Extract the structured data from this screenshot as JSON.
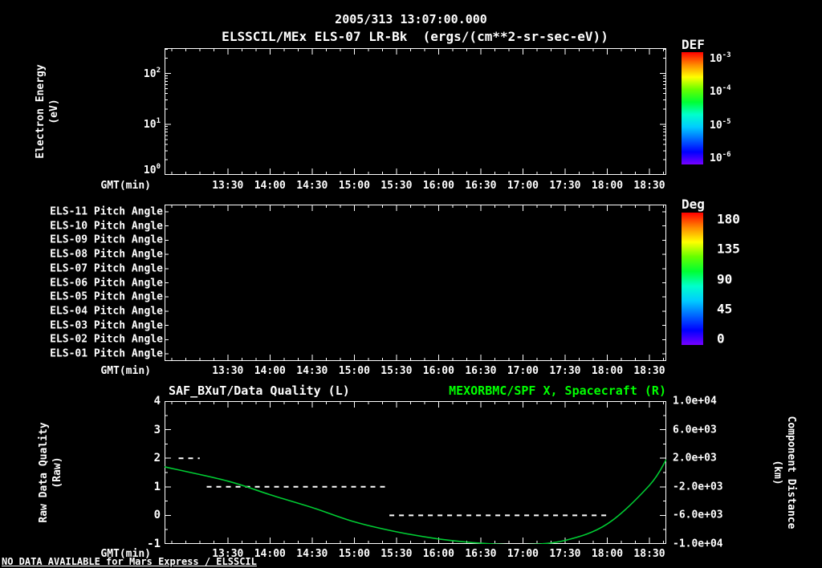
{
  "header": {
    "title": "2005/313 13:07:00.000",
    "subtitle": "ELSSCIL/MEx ELS-07 LR-Bk  (ergs/(cm**2-sr-sec-eV))"
  },
  "time_axis": {
    "label": "GMT(min)",
    "tick_labels": [
      "13:30",
      "14:00",
      "14:30",
      "15:00",
      "15:30",
      "16:00",
      "16:30",
      "17:00",
      "17:30",
      "18:00",
      "18:30"
    ],
    "tick_minutes": [
      810,
      840,
      870,
      900,
      930,
      960,
      990,
      1020,
      1050,
      1080,
      1110
    ],
    "start_min": 765,
    "end_min": 1122
  },
  "panel_energy": {
    "ylabel": [
      "Electron Energy",
      "(eV)"
    ],
    "yticks": [
      {
        "base": "10",
        "exp": "2",
        "log": 2
      },
      {
        "base": "10",
        "exp": "1",
        "log": 1
      },
      {
        "base": "10",
        "exp": "0",
        "log": 0
      }
    ],
    "log_decades_shown": 2.5,
    "colorbar": {
      "title": "DEF",
      "ticks": [
        {
          "base": "10",
          "exp": "-3"
        },
        {
          "base": "10",
          "exp": "-4"
        },
        {
          "base": "10",
          "exp": "-5"
        },
        {
          "base": "10",
          "exp": "-6"
        }
      ]
    }
  },
  "panel_pitch": {
    "row_labels": [
      "ELS-11 Pitch Angle",
      "ELS-10 Pitch Angle",
      "ELS-09 Pitch Angle",
      "ELS-08 Pitch Angle",
      "ELS-07 Pitch Angle",
      "ELS-06 Pitch Angle",
      "ELS-05 Pitch Angle",
      "ELS-04 Pitch Angle",
      "ELS-03 Pitch Angle",
      "ELS-02 Pitch Angle",
      "ELS-01 Pitch Angle"
    ],
    "colorbar": {
      "title": "Deg",
      "ticks": [
        "180",
        "135",
        "90",
        "45",
        "0"
      ]
    }
  },
  "panel_quality": {
    "title_left": "SAF_BXuT/Data Quality (L)",
    "title_right": "MEXORBMC/SPF X, Spacecraft (R)",
    "ylabel_left": [
      "Raw Data Quality",
      "(Raw)"
    ],
    "ylabel_right": [
      "Component Distance",
      "(km)"
    ],
    "left_ticks": [
      "4",
      "3",
      "2",
      "1",
      "0",
      "-1"
    ],
    "right_ticks": [
      "1.0e+04",
      "6.0e+03",
      "2.0e+03",
      "-2.0e+03",
      "-6.0e+03",
      "-1.0e+04"
    ]
  },
  "footer": {
    "no_data": "NO DATA AVAILABLE for Mars Express / ELSSCIL"
  },
  "colors": {
    "background": "#000000",
    "foreground": "#ffffff",
    "accent_green": "#00ff00",
    "curve_green": "#00cc33",
    "rainbow": [
      "#ff0000",
      "#ff8800",
      "#ffff00",
      "#66ff00",
      "#00ff33",
      "#00ffcc",
      "#00ccff",
      "#0066ff",
      "#0000ff",
      "#7700ff"
    ]
  },
  "chart_data": [
    {
      "type": "heatmap",
      "panel": "electron-energy-spectrogram",
      "title": "ELSSCIL/MEx ELS-07 LR-Bk (ergs/(cm**2-sr-sec-eV))",
      "xlabel": "GMT(min)",
      "x_ticks": [
        "13:30",
        "14:00",
        "14:30",
        "15:00",
        "15:30",
        "16:00",
        "16:30",
        "17:00",
        "17:30",
        "18:00",
        "18:30"
      ],
      "ylabel": "Electron Energy (eV)",
      "y_scale": "log",
      "y_tick_labels": [
        "10^0",
        "10^1",
        "10^2"
      ],
      "colorbar_title": "DEF",
      "colorbar_tick_labels": [
        "10^-3",
        "10^-4",
        "10^-5",
        "10^-6"
      ],
      "values": [],
      "empty": true
    },
    {
      "type": "heatmap",
      "panel": "pitch-angle",
      "xlabel": "GMT(min)",
      "x_ticks": [
        "13:30",
        "14:00",
        "14:30",
        "15:00",
        "15:30",
        "16:00",
        "16:30",
        "17:00",
        "17:30",
        "18:00",
        "18:30"
      ],
      "rows": [
        "ELS-11 Pitch Angle",
        "ELS-10 Pitch Angle",
        "ELS-09 Pitch Angle",
        "ELS-08 Pitch Angle",
        "ELS-07 Pitch Angle",
        "ELS-06 Pitch Angle",
        "ELS-05 Pitch Angle",
        "ELS-04 Pitch Angle",
        "ELS-03 Pitch Angle",
        "ELS-02 Pitch Angle",
        "ELS-01 Pitch Angle"
      ],
      "colorbar_title": "Deg",
      "colorbar_tick_labels": [
        "180",
        "135",
        "90",
        "45",
        "0"
      ],
      "values": [],
      "empty": true
    },
    {
      "type": "line",
      "panel": "quality-and-distance",
      "title_left": "SAF_BXuT/Data Quality (L)",
      "title_right": "MEXORBMC/SPF X, Spacecraft (R)",
      "xlabel": "GMT(min)",
      "x_ticks": [
        "13:30",
        "14:00",
        "14:30",
        "15:00",
        "15:30",
        "16:00",
        "16:30",
        "17:00",
        "17:30",
        "18:00",
        "18:30"
      ],
      "x_range_minutes": [
        765,
        1122
      ],
      "ylabel_left": "Raw Data Quality (Raw)",
      "ylim_left": [
        -1,
        4
      ],
      "ylabel_right": "Component Distance (km)",
      "ylim_right": [
        -10000,
        10000
      ],
      "series": [
        {
          "name": "Raw Data Quality",
          "axis": "left",
          "style": "dashed",
          "color": "#ffffff",
          "segments": [
            {
              "value": 2,
              "start_min": 775,
              "end_min": 790
            },
            {
              "value": 1,
              "start_min": 795,
              "end_min": 925
            },
            {
              "value": 0,
              "start_min": 925,
              "end_min": 1080
            }
          ]
        },
        {
          "name": "Spacecraft X Component Distance",
          "axis": "right",
          "style": "solid",
          "color": "#00cc33",
          "points": [
            [
              765,
              800
            ],
            [
              810,
              -1200
            ],
            [
              840,
              -3100
            ],
            [
              870,
              -4900
            ],
            [
              900,
              -6900
            ],
            [
              930,
              -8300
            ],
            [
              960,
              -9300
            ],
            [
              990,
              -9900
            ],
            [
              1020,
              -10100
            ],
            [
              1050,
              -9500
            ],
            [
              1080,
              -7200
            ],
            [
              1110,
              -1800
            ],
            [
              1122,
              1800
            ]
          ]
        }
      ]
    }
  ]
}
